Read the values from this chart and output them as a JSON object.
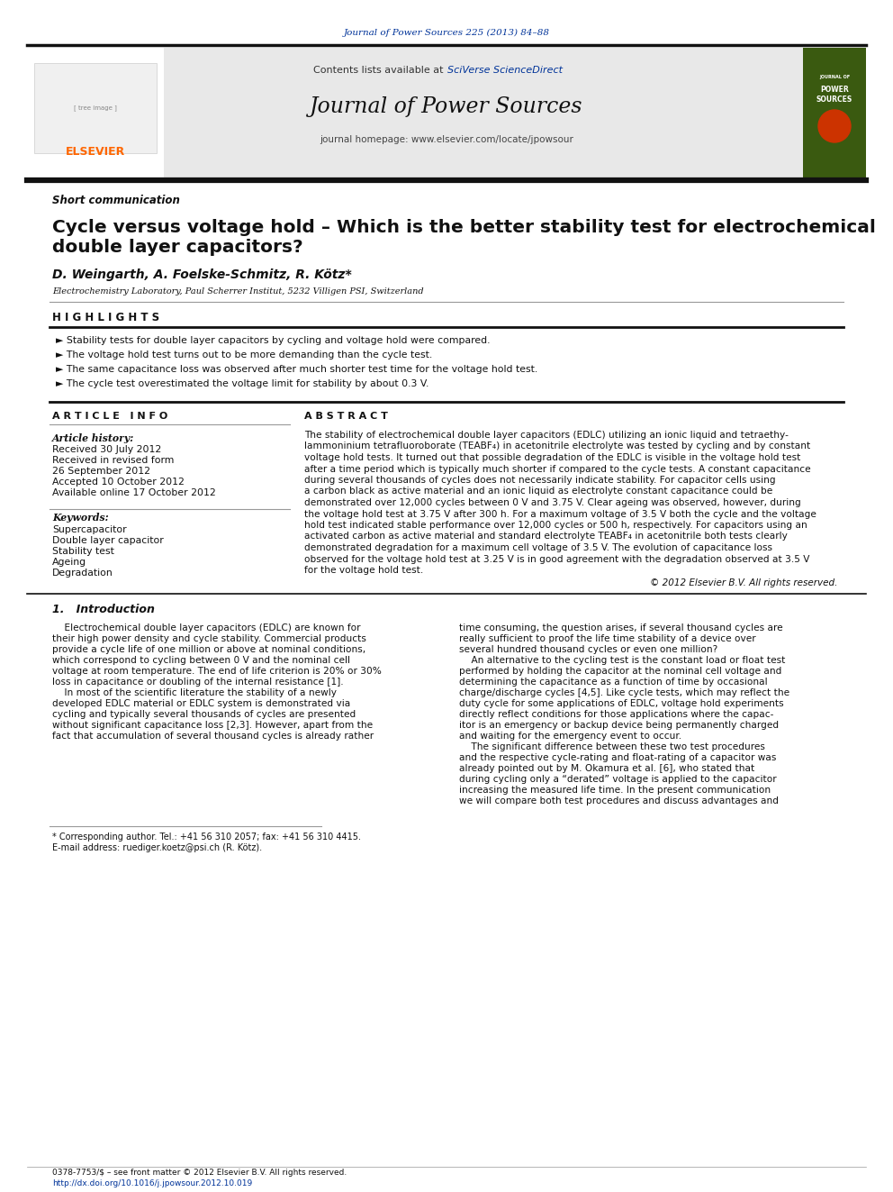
{
  "page_bg": "#ffffff",
  "top_journal_ref": "Journal of Power Sources 225 (2013) 84–88",
  "header_bg": "#e8e8e8",
  "contents_text": "Contents lists available at ",
  "sciverse_text": "SciVerse ScienceDirect",
  "journal_title": "Journal of Power Sources",
  "journal_homepage": "journal homepage: www.elsevier.com/locate/jpowsour",
  "section_label": "Short communication",
  "paper_title_line1": "Cycle versus voltage hold – Which is the better stability test for electrochemical",
  "paper_title_line2": "double layer capacitors?",
  "authors": "D. Weingarth, A. Foelske-Schmitz, R. Kötz*",
  "affiliation": "Electrochemistry Laboratory, Paul Scherrer Institut, 5232 Villigen PSI, Switzerland",
  "highlights_title": "H I G H L I G H T S",
  "highlights": [
    "► Stability tests for double layer capacitors by cycling and voltage hold were compared.",
    "► The voltage hold test turns out to be more demanding than the cycle test.",
    "► The same capacitance loss was observed after much shorter test time for the voltage hold test.",
    "► The cycle test overestimated the voltage limit for stability by about 0.3 V."
  ],
  "article_info_title": "A R T I C L E   I N F O",
  "abstract_title": "A B S T R A C T",
  "article_history_label": "Article history:",
  "article_history": [
    "Received 30 July 2012",
    "Received in revised form",
    "26 September 2012",
    "Accepted 10 October 2012",
    "Available online 17 October 2012"
  ],
  "keywords_label": "Keywords:",
  "keywords": [
    "Supercapacitor",
    "Double layer capacitor",
    "Stability test",
    "Ageing",
    "Degradation"
  ],
  "abstract_text": "The stability of electrochemical double layer capacitors (EDLC) utilizing an ionic liquid and tetraethy-\nlammoninium tetrafluoroborate (TEABF₄) in acetonitrile electrolyte was tested by cycling and by constant\nvoltage hold tests. It turned out that possible degradation of the EDLC is visible in the voltage hold test\nafter a time period which is typically much shorter if compared to the cycle tests. A constant capacitance\nduring several thousands of cycles does not necessarily indicate stability. For capacitor cells using\na carbon black as active material and an ionic liquid as electrolyte constant capacitance could be\ndemonstrated over 12,000 cycles between 0 V and 3.75 V. Clear ageing was observed, however, during\nthe voltage hold test at 3.75 V after 300 h. For a maximum voltage of 3.5 V both the cycle and the voltage\nhold test indicated stable performance over 12,000 cycles or 500 h, respectively. For capacitors using an\nactivated carbon as active material and standard electrolyte TEABF₄ in acetonitrile both tests clearly\ndemonstrated degradation for a maximum cell voltage of 3.5 V. The evolution of capacitance loss\nobserved for the voltage hold test at 3.25 V is in good agreement with the degradation observed at 3.5 V\nfor the voltage hold test.",
  "copyright_text": "© 2012 Elsevier B.V. All rights reserved.",
  "intro_title": "1.   Introduction",
  "intro_col1_lines": [
    "    Electrochemical double layer capacitors (EDLC) are known for",
    "their high power density and cycle stability. Commercial products",
    "provide a cycle life of one million or above at nominal conditions,",
    "which correspond to cycling between 0 V and the nominal cell",
    "voltage at room temperature. The end of life criterion is 20% or 30%",
    "loss in capacitance or doubling of the internal resistance [1].",
    "    In most of the scientific literature the stability of a newly",
    "developed EDLC material or EDLC system is demonstrated via",
    "cycling and typically several thousands of cycles are presented",
    "without significant capacitance loss [2,3]. However, apart from the",
    "fact that accumulation of several thousand cycles is already rather"
  ],
  "intro_col2_lines": [
    "time consuming, the question arises, if several thousand cycles are",
    "really sufficient to proof the life time stability of a device over",
    "several hundred thousand cycles or even one million?",
    "    An alternative to the cycling test is the constant load or float test",
    "performed by holding the capacitor at the nominal cell voltage and",
    "determining the capacitance as a function of time by occasional",
    "charge/discharge cycles [4,5]. Like cycle tests, which may reflect the",
    "duty cycle for some applications of EDLC, voltage hold experiments",
    "directly reflect conditions for those applications where the capac-",
    "itor is an emergency or backup device being permanently charged",
    "and waiting for the emergency event to occur.",
    "    The significant difference between these two test procedures",
    "and the respective cycle-rating and float-rating of a capacitor was",
    "already pointed out by M. Okamura et al. [6], who stated that",
    "during cycling only a “derated” voltage is applied to the capacitor",
    "increasing the measured life time. In the present communication",
    "we will compare both test procedures and discuss advantages and"
  ],
  "footnote_star": "* Corresponding author. Tel.: +41 56 310 2057; fax: +41 56 310 4415.",
  "footnote_email": "E-mail address: ruediger.koetz@psi.ch (R. Kötz).",
  "issn_line": "0378-7753/$ – see front matter © 2012 Elsevier B.V. All rights reserved.",
  "doi_line": "http://dx.doi.org/10.1016/j.jpowsour.2012.10.019",
  "elsevier_color": "#FF6600",
  "sciverse_color": "#003399",
  "link_color": "#003399"
}
